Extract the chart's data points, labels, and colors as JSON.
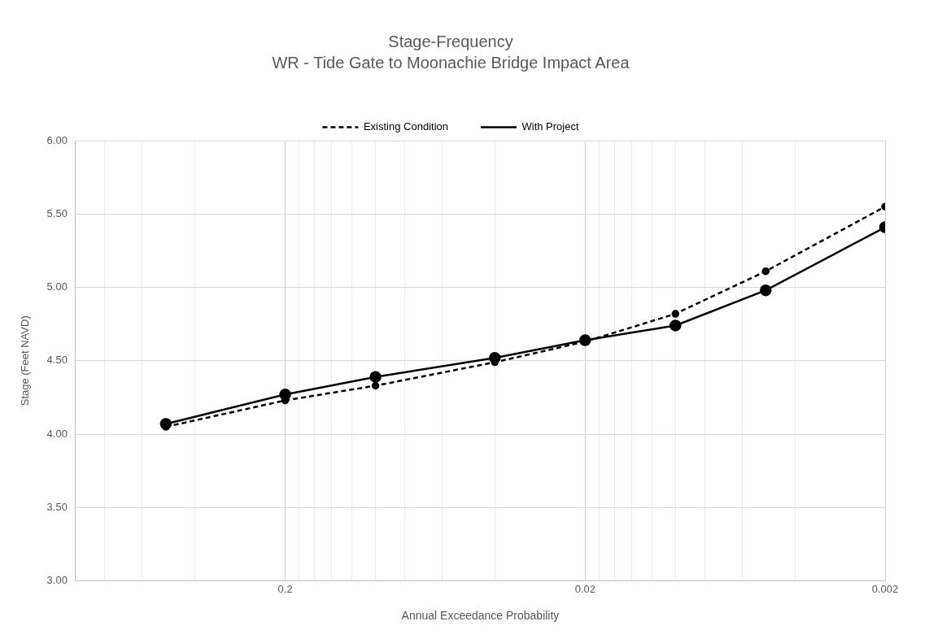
{
  "chart_data": {
    "type": "line",
    "title": "Stage-Frequency",
    "subtitle": "WR - Tide Gate to Moonachie Bridge Impact Area",
    "xlabel": "Annual Exceedance Probability",
    "ylabel": "Stage (Feet NAVD)",
    "x": [
      0.5,
      0.2,
      0.1,
      0.04,
      0.02,
      0.01,
      0.005,
      0.002
    ],
    "series": [
      {
        "name": "Existing Condition",
        "color": "#000000",
        "line_style": "dashed",
        "values": [
          4.05,
          4.23,
          4.33,
          4.49,
          4.63,
          4.82,
          5.11,
          5.55
        ]
      },
      {
        "name": "With Project",
        "color": "#000000",
        "line_style": "solid",
        "values": [
          4.07,
          4.27,
          4.39,
          4.52,
          4.64,
          4.74,
          4.98,
          5.41
        ]
      }
    ],
    "log": "x",
    "xlim": [
      1,
      0.002
    ],
    "xticks": [
      {
        "value": 0.8,
        "label": null
      },
      {
        "value": 0.6,
        "label": null
      },
      {
        "value": 0.4,
        "label": null
      },
      {
        "value": 0.2,
        "label": "0.2"
      },
      {
        "value": 0.18,
        "label": null
      },
      {
        "value": 0.16,
        "label": null
      },
      {
        "value": 0.14,
        "label": null
      },
      {
        "value": 0.12,
        "label": null
      },
      {
        "value": 0.1,
        "label": null
      },
      {
        "value": 0.08,
        "label": null
      },
      {
        "value": 0.06,
        "label": null
      },
      {
        "value": 0.04,
        "label": null
      },
      {
        "value": 0.02,
        "label": "0.02"
      },
      {
        "value": 0.018,
        "label": null
      },
      {
        "value": 0.016,
        "label": null
      },
      {
        "value": 0.014,
        "label": null
      },
      {
        "value": 0.012,
        "label": null
      },
      {
        "value": 0.01,
        "label": null
      },
      {
        "value": 0.008,
        "label": null
      },
      {
        "value": 0.006,
        "label": null
      },
      {
        "value": 0.004,
        "label": null
      },
      {
        "value": 0.002,
        "label": "0.002"
      }
    ],
    "ylim": [
      3,
      6
    ],
    "yticks": [
      {
        "value": 3,
        "label": "3.00"
      },
      {
        "value": 3.5,
        "label": "3.50"
      },
      {
        "value": 4,
        "label": "4.00"
      },
      {
        "value": 4.5,
        "label": "4.50"
      },
      {
        "value": 5,
        "label": "5.00"
      },
      {
        "value": 5.5,
        "label": "5.50"
      },
      {
        "value": 6,
        "label": "6.00"
      }
    ],
    "grid": true,
    "legend": "top",
    "marker": "circle"
  }
}
